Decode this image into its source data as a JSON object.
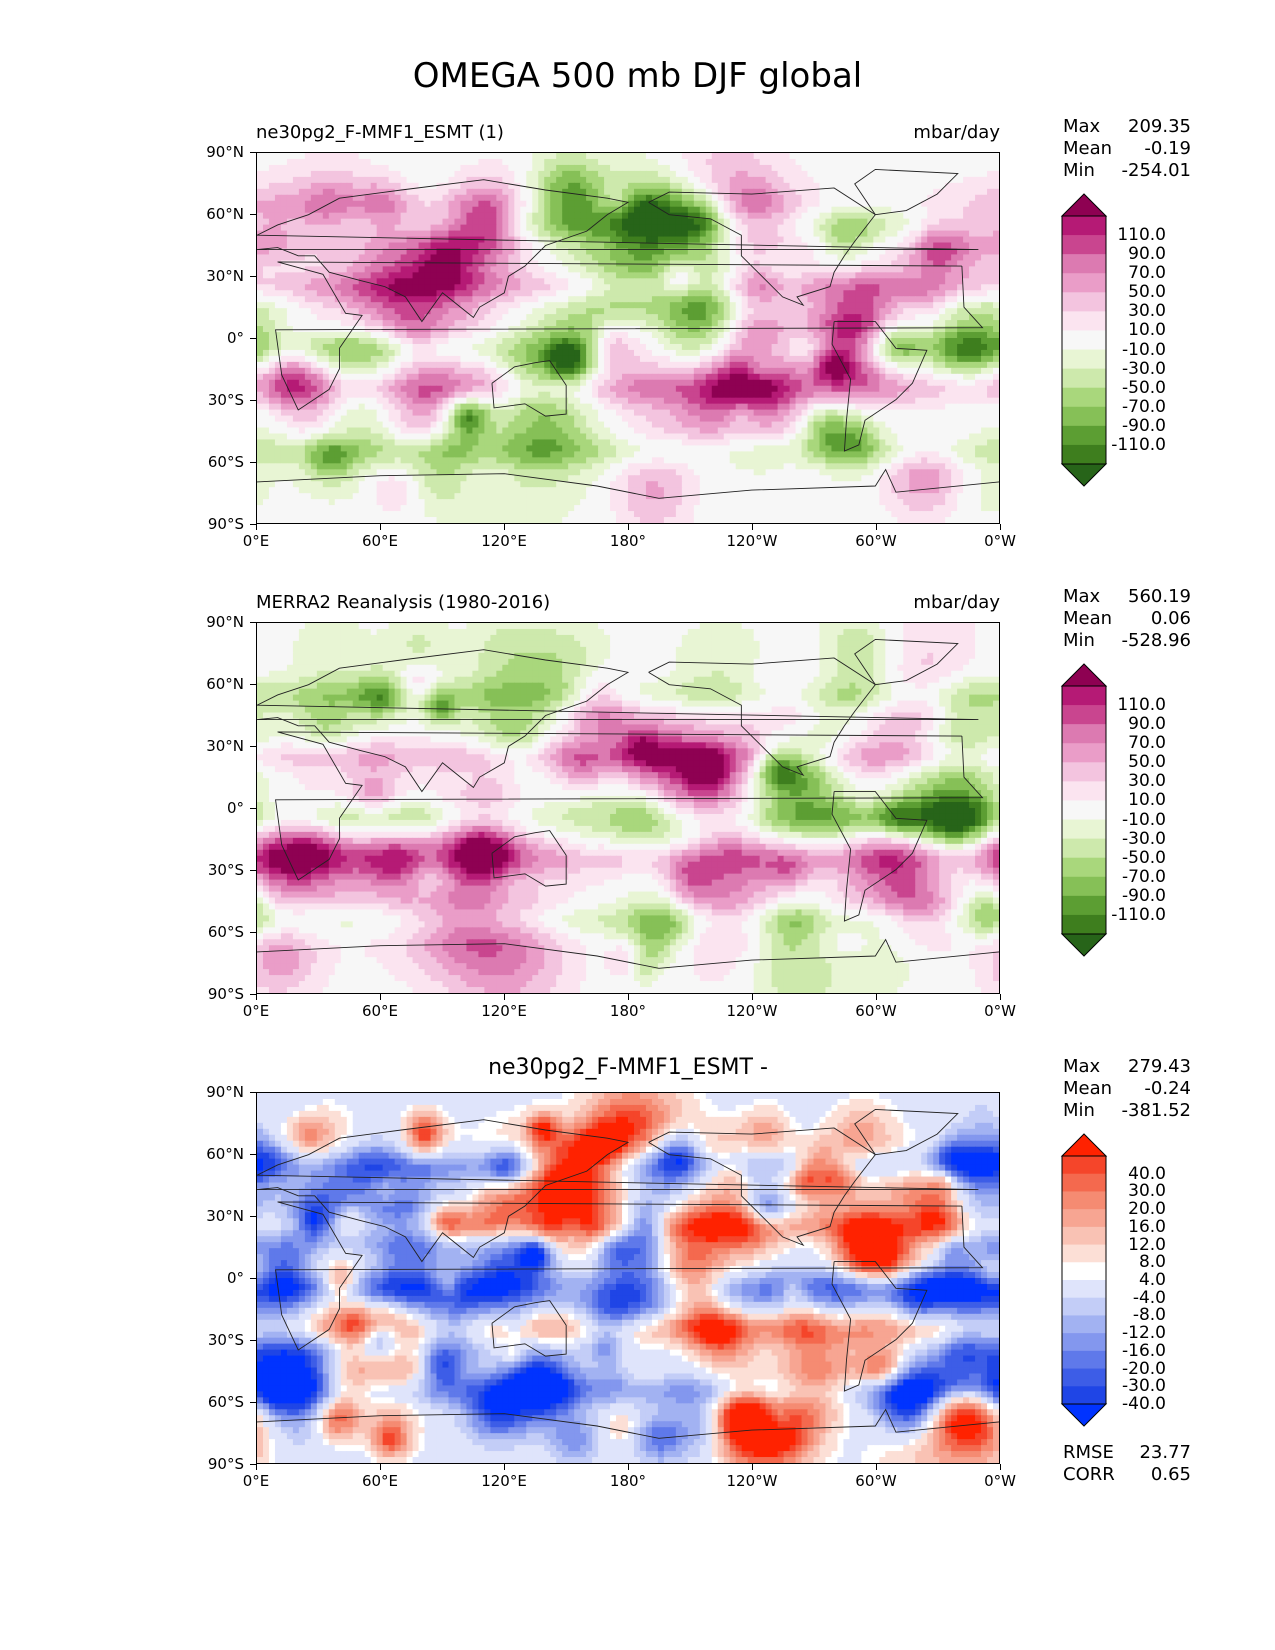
{
  "figure": {
    "title": "OMEGA 500 mb DJF global"
  },
  "axes": {
    "y_ticks": [
      "90°N",
      "60°N",
      "30°N",
      "0°",
      "30°S",
      "60°S",
      "90°S"
    ],
    "x_ticks": [
      "0°E",
      "60°E",
      "120°E",
      "180°",
      "120°W",
      "60°W",
      "0°W"
    ]
  },
  "panels": [
    {
      "title_left": "ne30pg2_F-MMF1_ESMT (1)",
      "title_right": "mbar/day",
      "title_center": "",
      "stats": {
        "max_label": "Max",
        "max": "209.35",
        "mean_label": "Mean",
        "mean": "-0.19",
        "min_label": "Min",
        "min": "-254.01"
      },
      "colorbar": {
        "labels": [
          "110.0",
          "90.0",
          "70.0",
          "50.0",
          "30.0",
          "10.0",
          "-10.0",
          "-30.0",
          "-50.0",
          "-70.0",
          "-90.0",
          "-110.0"
        ],
        "colors": [
          "#8e0152",
          "#b51a75",
          "#c9458f",
          "#dc7ab1",
          "#ea9dc8",
          "#f3c4df",
          "#fbe4f0",
          "#f7f7f7",
          "#e8f5d4",
          "#cde9ac",
          "#a9d77c",
          "#86c057",
          "#5c9e33",
          "#3e7e1e",
          "#276419"
        ]
      }
    },
    {
      "title_left": "MERRA2 Reanalysis (1980-2016)",
      "title_right": "mbar/day",
      "title_center": "",
      "stats": {
        "max_label": "Max",
        "max": "560.19",
        "mean_label": "Mean",
        "mean": "0.06",
        "min_label": "Min",
        "min": "-528.96"
      },
      "colorbar": {
        "labels": [
          "110.0",
          "90.0",
          "70.0",
          "50.0",
          "30.0",
          "10.0",
          "-10.0",
          "-30.0",
          "-50.0",
          "-70.0",
          "-90.0",
          "-110.0"
        ],
        "colors": [
          "#8e0152",
          "#b51a75",
          "#c9458f",
          "#dc7ab1",
          "#ea9dc8",
          "#f3c4df",
          "#fbe4f0",
          "#f7f7f7",
          "#e8f5d4",
          "#cde9ac",
          "#a9d77c",
          "#86c057",
          "#5c9e33",
          "#3e7e1e",
          "#276419"
        ]
      }
    },
    {
      "title_left": "",
      "title_right": "",
      "title_center": "ne30pg2_F-MMF1_ESMT -",
      "stats": {
        "max_label": "Max",
        "max": "279.43",
        "mean_label": "Mean",
        "mean": "-0.24",
        "min_label": "Min",
        "min": "-381.52"
      },
      "colorbar": {
        "labels": [
          "40.0",
          "30.0",
          "20.0",
          "16.0",
          "12.0",
          "8.0",
          "4.0",
          "-4.0",
          "-8.0",
          "-12.0",
          "-16.0",
          "-20.0",
          "-30.0",
          "-40.0"
        ],
        "colors": [
          "#ff2200",
          "#f5452a",
          "#f4694e",
          "#f58b72",
          "#f7a592",
          "#f9c2b4",
          "#fcdfd6",
          "#ffffff",
          "#dfe4fb",
          "#c3cdf7",
          "#a2b2f2",
          "#8397ee",
          "#5f79ea",
          "#3d5de7",
          "#1f45e6",
          "#0033ff"
        ]
      },
      "metrics": {
        "rmse_label": "RMSE",
        "rmse": "23.77",
        "corr_label": "CORR",
        "corr": "0.65"
      }
    }
  ]
}
